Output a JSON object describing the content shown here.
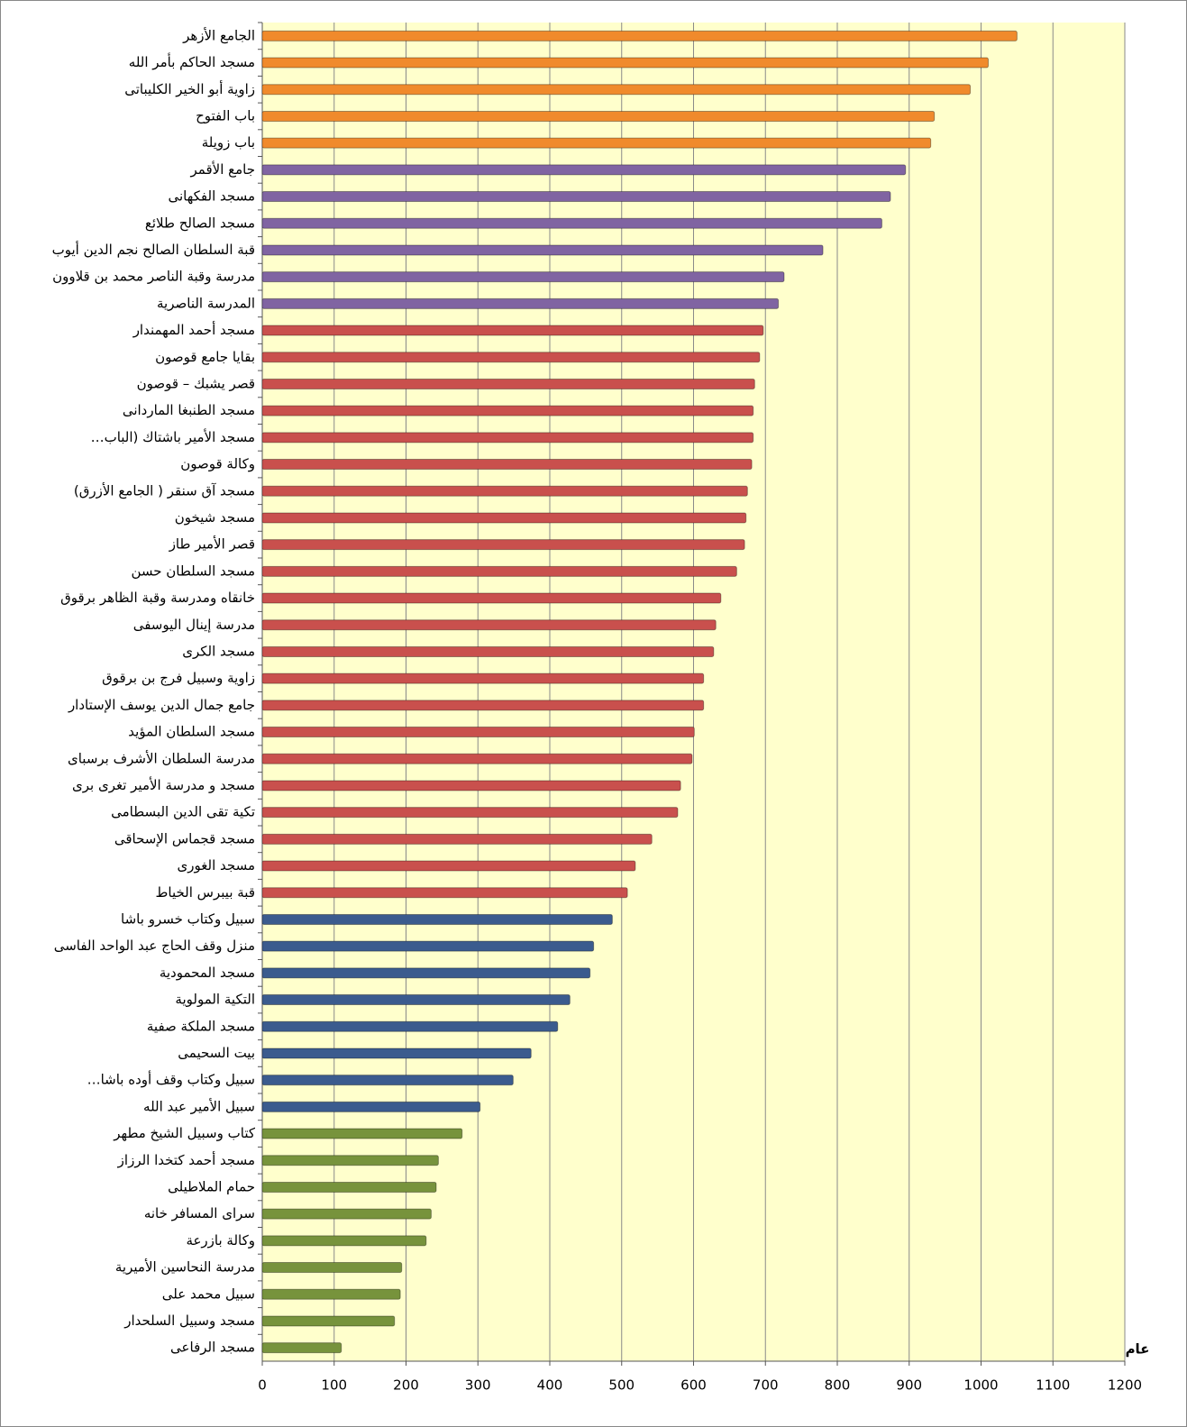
{
  "chart_data": {
    "type": "barh",
    "x_label": "عام",
    "categories": [
      "الجامع الأزهر",
      "مسجد الحاكم بأمر الله",
      "زاوية أبو الخير الكليباتى",
      "باب الفتوح",
      "باب زويلة",
      "جامع الأقمر",
      "مسجد الفكهانى",
      "مسجد الصالح طلائع",
      "قبة السلطان الصالح نجم الدين أيوب",
      "مدرسة وقبة  الناصر محمد بن قلاوون",
      "المدرسة الناصرية",
      "مسجد أحمد المهمندار",
      "بقايا جامع قوصون",
      "قصر يشبك – قوصون",
      "مسجد الطنبغا الماردانى",
      "مسجد الأمير باشتاك (الباب…",
      "وكالة قوصون",
      "مسجد آق سنقر ( الجامع الأزرق)",
      "مسجد شيخون",
      "قصر الأمير طاز",
      "مسجد السلطان حسن",
      "خانقاه ومدرسة وقبة الظاهر برقوق",
      "مدرسة  إينال اليوسفى",
      "مسجد الكرى",
      "زاوية وسبيل فرج بن برقوق",
      "جامع جمال الدين يوسف الإستادار",
      "مسجد السلطان المؤيد",
      "مدرسة السلطان الأشرف برسباى",
      "مسجد و مدرسة الأمير  تغرى برى",
      "تكية تقى الدين البسطامى",
      "مسجد قجماس الإسحاقى",
      "مسجد الغورى",
      "قبة بيبرس الخياط",
      "سبيل وكتاب خسرو باشا",
      "منزل وقف الحاج عبد الواحد الفاسى",
      "مسجد المحمودية",
      "التكية المولوية",
      "مسجد الملكة صفية",
      "بيت السحيمى",
      "سبيل وكتاب وقف أوده باشا…",
      "سبيل الأمير عبد الله",
      "كتاب وسبيل الشيخ مطهر",
      "مسجد أحمد كتخدا الرزاز",
      "حمام الملاطيلى",
      "سراى المسافر خانه",
      "وكالة بازرعة",
      "مدرسة النحاسين الأميرية",
      "سبيل محمد على",
      "مسجد وسبيل السلحدار",
      "مسجد الرفاعى"
    ],
    "values": [
      1050,
      1010,
      985,
      935,
      930,
      895,
      874,
      862,
      780,
      726,
      718,
      697,
      692,
      685,
      683,
      683,
      681,
      675,
      673,
      671,
      660,
      638,
      631,
      628,
      614,
      614,
      601,
      598,
      582,
      578,
      542,
      519,
      508,
      487,
      461,
      456,
      428,
      411,
      374,
      349,
      303,
      278,
      245,
      242,
      235,
      228,
      194,
      192,
      184,
      110
    ],
    "colors": [
      "#f08a2c",
      "#f08a2c",
      "#f08a2c",
      "#f08a2c",
      "#f08a2c",
      "#8064a2",
      "#8064a2",
      "#8064a2",
      "#8064a2",
      "#8064a2",
      "#8064a2",
      "#c9504d",
      "#c9504d",
      "#c9504d",
      "#c9504d",
      "#c9504d",
      "#c9504d",
      "#c9504d",
      "#c9504d",
      "#c9504d",
      "#c9504d",
      "#c9504d",
      "#c9504d",
      "#c9504d",
      "#c9504d",
      "#c9504d",
      "#c9504d",
      "#c9504d",
      "#c9504d",
      "#c9504d",
      "#c9504d",
      "#c9504d",
      "#c9504d",
      "#3b5b8e",
      "#3b5b8e",
      "#3b5b8e",
      "#3b5b8e",
      "#3b5b8e",
      "#3b5b8e",
      "#3b5b8e",
      "#3b5b8e",
      "#77933c",
      "#77933c",
      "#77933c",
      "#77933c",
      "#77933c",
      "#77933c",
      "#77933c",
      "#77933c",
      "#77933c"
    ],
    "xlim": [
      0,
      1200
    ],
    "xticks": [
      0,
      100,
      200,
      300,
      400,
      500,
      600,
      700,
      800,
      900,
      1000,
      1100,
      1200
    ],
    "grid": true
  }
}
